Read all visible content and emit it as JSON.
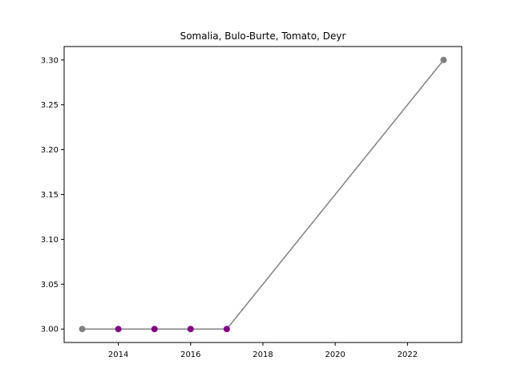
{
  "chart_data": {
    "type": "line",
    "title": "Somalia, Bulo-Burte, Tomato, Deyr",
    "xlabel": "",
    "ylabel": "",
    "xlim": [
      2012.5,
      2023.5
    ],
    "ylim": [
      2.985,
      3.315
    ],
    "x_ticks": [
      2014,
      2016,
      2018,
      2020,
      2022
    ],
    "y_ticks": [
      3.0,
      3.05,
      3.1,
      3.15,
      3.2,
      3.25,
      3.3
    ],
    "x_tick_labels": [
      "2014",
      "2016",
      "2018",
      "2020",
      "2022"
    ],
    "y_tick_labels": [
      "3.00",
      "3.05",
      "3.10",
      "3.15",
      "3.20",
      "3.25",
      "3.30"
    ],
    "grid": false,
    "line_color": "#808080",
    "points": [
      {
        "x": 2013,
        "y": 3.0,
        "color": "#808080"
      },
      {
        "x": 2014,
        "y": 3.0,
        "color": "#800080"
      },
      {
        "x": 2015,
        "y": 3.0,
        "color": "#800080"
      },
      {
        "x": 2016,
        "y": 3.0,
        "color": "#800080"
      },
      {
        "x": 2017,
        "y": 3.0,
        "color": "#800080"
      },
      {
        "x": 2023,
        "y": 3.3,
        "color": "#808080"
      }
    ]
  }
}
